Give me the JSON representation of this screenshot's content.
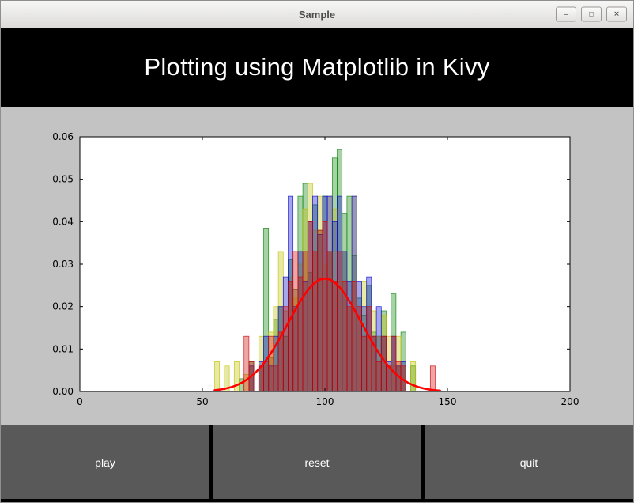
{
  "window": {
    "title": "Sample",
    "controls": {
      "minimize": "–",
      "maximize": "□",
      "close": "✕"
    }
  },
  "header": {
    "title": "Plotting using Matplotlib in Kivy"
  },
  "buttons": [
    {
      "label": "play"
    },
    {
      "label": "reset"
    },
    {
      "label": "quit"
    }
  ],
  "chart_data": {
    "type": "histogram+line",
    "title": "",
    "xlim": [
      0,
      200
    ],
    "ylim": [
      0,
      0.06
    ],
    "xticks": [
      0,
      50,
      100,
      150,
      200
    ],
    "yticks": [
      0,
      0.01,
      0.02,
      0.03,
      0.04,
      0.05,
      0.06
    ],
    "ytick_decimals": 2,
    "grid": false,
    "legend": false,
    "bin_start": 55,
    "bin_width": 2,
    "series": [
      {
        "name": "hist-green",
        "color": "#007f00",
        "values": [
          0,
          0,
          0,
          0,
          0,
          0.003,
          0,
          0.007,
          0,
          0.006,
          0.0385,
          0.008,
          0.017,
          0.02,
          0.013,
          0.031,
          0.024,
          0.046,
          0.049,
          0.028,
          0.044,
          0.038,
          0.046,
          0.033,
          0.055,
          0.057,
          0.042,
          0.046,
          0.032,
          0.022,
          0.018,
          0.025,
          0.014,
          0.013,
          0.019,
          0.006,
          0.023,
          0.006,
          0.014,
          0,
          0.006,
          0,
          0,
          0,
          0
        ]
      },
      {
        "name": "hist-yellow",
        "color": "#bfbf00",
        "values": [
          0.007,
          0,
          0.006,
          0,
          0.007,
          0,
          0.004,
          0.006,
          0,
          0.013,
          0.006,
          0.014,
          0.02,
          0.033,
          0.019,
          0.027,
          0.022,
          0.03,
          0.043,
          0.049,
          0.038,
          0.046,
          0.03,
          0.046,
          0.043,
          0.026,
          0.033,
          0.02,
          0.046,
          0.018,
          0.026,
          0.013,
          0.019,
          0.013,
          0.018,
          0.013,
          0.006,
          0.013,
          0.006,
          0,
          0.007,
          0,
          0,
          0,
          0
        ]
      },
      {
        "name": "hist-blue",
        "color": "#0000cc",
        "values": [
          0,
          0,
          0,
          0,
          0,
          0,
          0,
          0.006,
          0,
          0.007,
          0.013,
          0.006,
          0.013,
          0.02,
          0.027,
          0.046,
          0.02,
          0.033,
          0.026,
          0.04,
          0.046,
          0.037,
          0.046,
          0.046,
          0.04,
          0.046,
          0.033,
          0.026,
          0.046,
          0.026,
          0.02,
          0.027,
          0.013,
          0.02,
          0.013,
          0.007,
          0.013,
          0.006,
          0.007,
          0,
          0,
          0,
          0,
          0,
          0
        ]
      },
      {
        "name": "hist-red",
        "color": "#cc0000",
        "values": [
          0,
          0,
          0,
          0,
          0,
          0,
          0.013,
          0.007,
          0,
          0.006,
          0.007,
          0.013,
          0.006,
          0.014,
          0.02,
          0.026,
          0.033,
          0.027,
          0.033,
          0.04,
          0.033,
          0.038,
          0.04,
          0.033,
          0.026,
          0.033,
          0.026,
          0.02,
          0.026,
          0.02,
          0.013,
          0.02,
          0.013,
          0.007,
          0.013,
          0.006,
          0.013,
          0.007,
          0.006,
          0,
          0,
          0,
          0,
          0,
          0.006
        ]
      }
    ],
    "curve": {
      "name": "normal-pdf",
      "color": "#ff0000",
      "mu": 100,
      "sigma": 15,
      "peak": 0.0266,
      "x_start": 55,
      "x_end": 147
    }
  }
}
